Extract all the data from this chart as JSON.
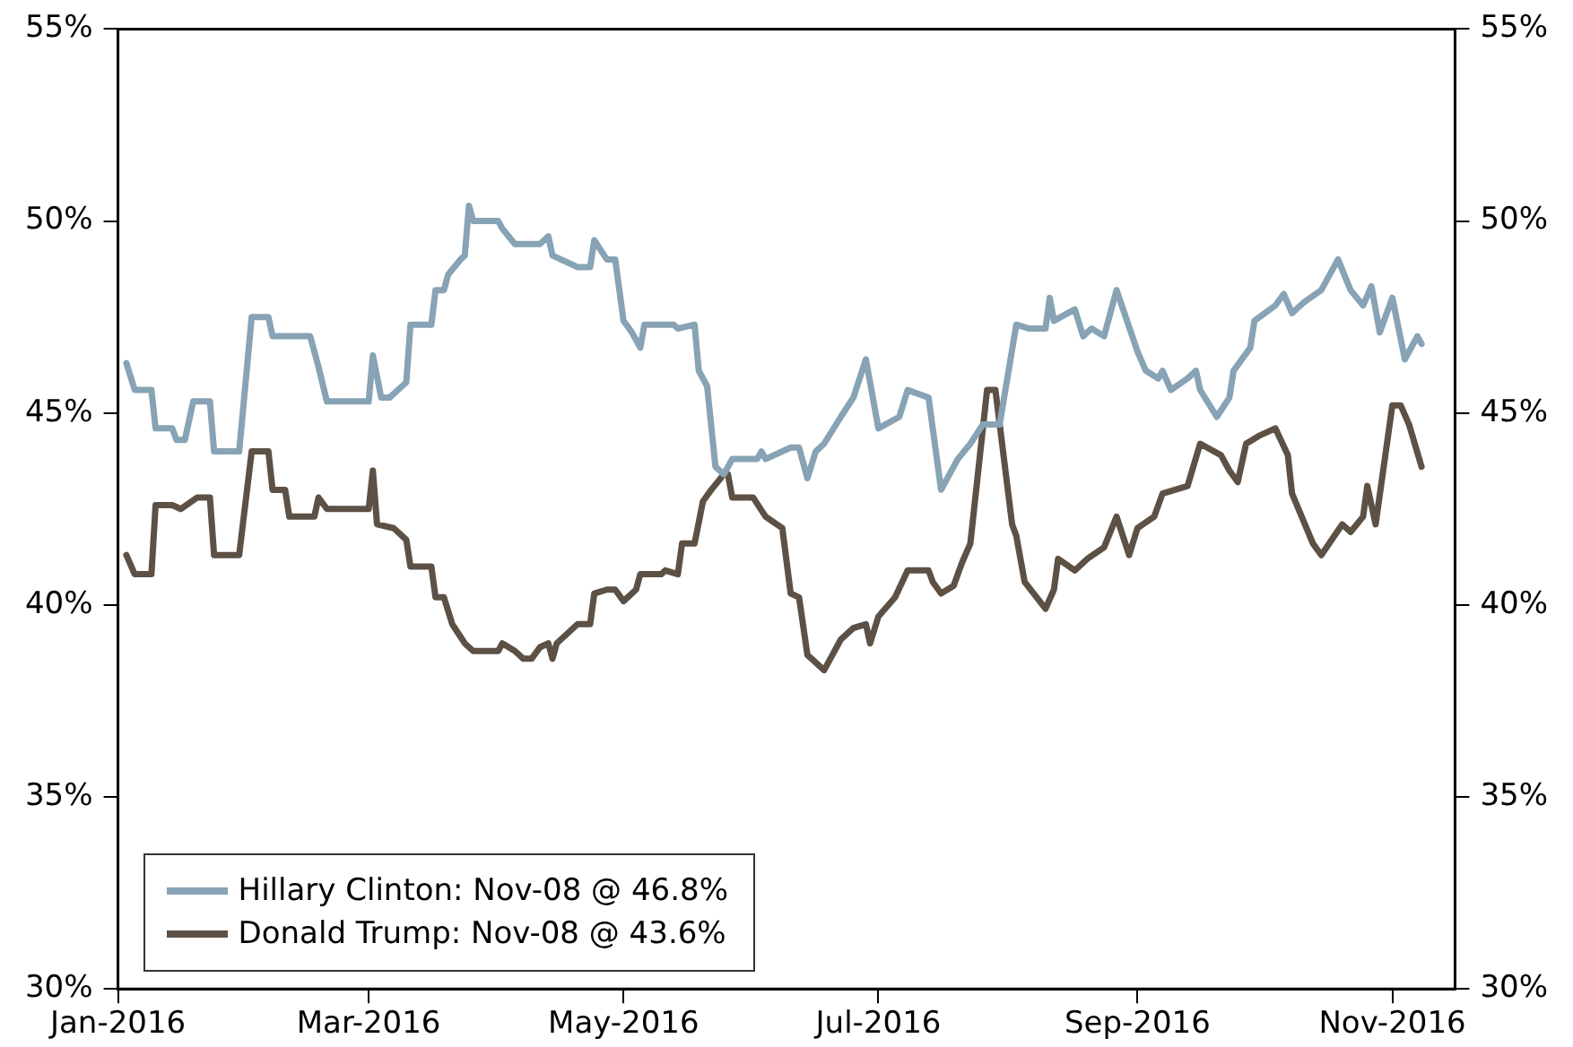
{
  "chart_data": {
    "type": "line",
    "legend": "bottom left",
    "marker": "none",
    "line_style": "solid",
    "grid": false,
    "xlim": [
      "2016-01-01",
      "2016-11-16"
    ],
    "xticks": [
      {
        "value": "2016-01-01",
        "label": "Jan-2016"
      },
      {
        "value": "2016-03-01",
        "label": "Mar-2016"
      },
      {
        "value": "2016-05-01",
        "label": "May-2016"
      },
      {
        "value": "2016-07-01",
        "label": "Jul-2016"
      },
      {
        "value": "2016-09-01",
        "label": "Sep-2016"
      },
      {
        "value": "2016-11-01",
        "label": "Nov-2016"
      }
    ],
    "ylim": [
      30,
      55
    ],
    "yticks": [
      {
        "value": 30,
        "label": "30%"
      },
      {
        "value": 35,
        "label": "35%"
      },
      {
        "value": 40,
        "label": "40%"
      },
      {
        "value": 45,
        "label": "45%"
      },
      {
        "value": 50,
        "label": "50%"
      },
      {
        "value": 55,
        "label": "55%"
      }
    ],
    "y2lim": [
      30,
      55
    ],
    "y2ticks": [
      {
        "value": 30,
        "label": "30%"
      },
      {
        "value": 35,
        "label": "35%"
      },
      {
        "value": 40,
        "label": "40%"
      },
      {
        "value": 45,
        "label": "45%"
      },
      {
        "value": 50,
        "label": "50%"
      },
      {
        "value": 55,
        "label": "55%"
      }
    ],
    "series": [
      {
        "name": "Hillary Clinton: Nov-08 @ 46.8%",
        "color": "#87a3b5",
        "x": [
          "2016-01-03",
          "2016-01-05",
          "2016-01-09",
          "2016-01-10",
          "2016-01-14",
          "2016-01-15",
          "2016-01-17",
          "2016-01-19",
          "2016-01-23",
          "2016-01-24",
          "2016-01-30",
          "2016-02-02",
          "2016-02-06",
          "2016-02-07",
          "2016-02-16",
          "2016-02-18",
          "2016-02-20",
          "2016-03-01",
          "2016-03-02",
          "2016-03-04",
          "2016-03-06",
          "2016-03-10",
          "2016-03-11",
          "2016-03-16",
          "2016-03-17",
          "2016-03-19",
          "2016-03-20",
          "2016-03-23",
          "2016-03-24",
          "2016-03-25",
          "2016-03-26",
          "2016-04-01",
          "2016-04-02",
          "2016-04-05",
          "2016-04-11",
          "2016-04-13",
          "2016-04-14",
          "2016-04-20",
          "2016-04-23",
          "2016-04-24",
          "2016-04-27",
          "2016-04-29",
          "2016-05-01",
          "2016-05-03",
          "2016-05-05",
          "2016-05-06",
          "2016-05-13",
          "2016-05-14",
          "2016-05-18",
          "2016-05-19",
          "2016-05-21",
          "2016-05-23",
          "2016-05-25",
          "2016-05-27",
          "2016-06-02",
          "2016-06-03",
          "2016-06-04",
          "2016-06-10",
          "2016-06-12",
          "2016-06-14",
          "2016-06-16",
          "2016-06-18",
          "2016-06-22",
          "2016-06-25",
          "2016-06-28",
          "2016-07-01",
          "2016-07-06",
          "2016-07-08",
          "2016-07-13",
          "2016-07-16",
          "2016-07-20",
          "2016-07-23",
          "2016-07-26",
          "2016-07-30",
          "2016-08-03",
          "2016-08-06",
          "2016-08-10",
          "2016-08-11",
          "2016-08-12",
          "2016-08-17",
          "2016-08-19",
          "2016-08-21",
          "2016-08-24",
          "2016-08-27",
          "2016-09-01",
          "2016-09-03",
          "2016-09-06",
          "2016-09-07",
          "2016-09-09",
          "2016-09-13",
          "2016-09-15",
          "2016-09-16",
          "2016-09-20",
          "2016-09-23",
          "2016-09-24",
          "2016-09-28",
          "2016-09-29",
          "2016-10-04",
          "2016-10-06",
          "2016-10-08",
          "2016-10-11",
          "2016-10-15",
          "2016-10-19",
          "2016-10-22",
          "2016-10-25",
          "2016-10-27",
          "2016-10-29",
          "2016-11-01",
          "2016-11-04",
          "2016-11-07",
          "2016-11-08"
        ],
        "values": [
          46.3,
          45.6,
          45.6,
          44.6,
          44.6,
          44.3,
          44.3,
          45.3,
          45.3,
          44.0,
          44.0,
          47.5,
          47.5,
          47.0,
          47.0,
          46.2,
          45.3,
          45.3,
          46.5,
          45.4,
          45.4,
          45.8,
          47.3,
          47.3,
          48.2,
          48.2,
          48.6,
          49.0,
          49.1,
          50.4,
          50.0,
          50.0,
          49.8,
          49.4,
          49.4,
          49.6,
          49.1,
          48.8,
          48.8,
          49.5,
          49.0,
          49.0,
          47.4,
          47.1,
          46.7,
          47.3,
          47.3,
          47.2,
          47.3,
          46.1,
          45.7,
          43.6,
          43.4,
          43.8,
          43.8,
          44.0,
          43.8,
          44.1,
          44.1,
          43.3,
          44.0,
          44.2,
          44.9,
          45.4,
          46.4,
          44.6,
          44.9,
          45.6,
          45.4,
          43.0,
          43.8,
          44.2,
          44.7,
          44.7,
          47.3,
          47.2,
          47.2,
          48.0,
          47.4,
          47.7,
          47.0,
          47.2,
          47.0,
          48.2,
          46.6,
          46.1,
          45.9,
          46.1,
          45.6,
          45.9,
          46.1,
          45.6,
          44.9,
          45.4,
          46.1,
          46.7,
          47.4,
          47.8,
          48.1,
          47.6,
          47.9,
          48.2,
          49.0,
          48.2,
          47.8,
          48.3,
          47.1,
          48.0,
          46.4,
          47.0,
          46.8
        ]
      },
      {
        "name": "Donald Trump: Nov-08 @ 43.6%",
        "color": "#5d5045",
        "x": [
          "2016-01-03",
          "2016-01-05",
          "2016-01-09",
          "2016-01-10",
          "2016-01-14",
          "2016-01-16",
          "2016-01-20",
          "2016-01-23",
          "2016-01-24",
          "2016-01-30",
          "2016-02-02",
          "2016-02-06",
          "2016-02-07",
          "2016-02-10",
          "2016-02-11",
          "2016-02-17",
          "2016-02-18",
          "2016-02-20",
          "2016-03-01",
          "2016-03-02",
          "2016-03-03",
          "2016-03-07",
          "2016-03-10",
          "2016-03-11",
          "2016-03-16",
          "2016-03-17",
          "2016-03-19",
          "2016-03-21",
          "2016-03-24",
          "2016-03-26",
          "2016-04-01",
          "2016-04-02",
          "2016-04-05",
          "2016-04-07",
          "2016-04-09",
          "2016-04-11",
          "2016-04-13",
          "2016-04-14",
          "2016-04-15",
          "2016-04-20",
          "2016-04-23",
          "2016-04-24",
          "2016-04-27",
          "2016-04-29",
          "2016-05-01",
          "2016-05-04",
          "2016-05-05",
          "2016-05-10",
          "2016-05-11",
          "2016-05-14",
          "2016-05-15",
          "2016-05-18",
          "2016-05-20",
          "2016-05-22",
          "2016-05-25",
          "2016-05-26",
          "2016-05-27",
          "2016-06-01",
          "2016-06-04",
          "2016-06-08",
          "2016-06-10",
          "2016-06-12",
          "2016-06-14",
          "2016-06-18",
          "2016-06-22",
          "2016-06-25",
          "2016-06-28",
          "2016-06-29",
          "2016-07-01",
          "2016-07-05",
          "2016-07-08",
          "2016-07-13",
          "2016-07-14",
          "2016-07-16",
          "2016-07-19",
          "2016-07-21",
          "2016-07-23",
          "2016-07-27",
          "2016-07-29",
          "2016-08-02",
          "2016-08-03",
          "2016-08-05",
          "2016-08-10",
          "2016-08-12",
          "2016-08-13",
          "2016-08-17",
          "2016-08-20",
          "2016-08-24",
          "2016-08-27",
          "2016-08-30",
          "2016-09-01",
          "2016-09-05",
          "2016-09-07",
          "2016-09-13",
          "2016-09-16",
          "2016-09-21",
          "2016-09-23",
          "2016-09-25",
          "2016-09-27",
          "2016-09-30",
          "2016-10-04",
          "2016-10-07",
          "2016-10-08",
          "2016-10-13",
          "2016-10-15",
          "2016-10-20",
          "2016-10-22",
          "2016-10-25",
          "2016-10-26",
          "2016-10-28",
          "2016-11-01",
          "2016-11-03",
          "2016-11-05",
          "2016-11-08"
        ],
        "values": [
          41.3,
          40.8,
          40.8,
          42.6,
          42.6,
          42.5,
          42.8,
          42.8,
          41.3,
          41.3,
          44.0,
          44.0,
          43.0,
          43.0,
          42.3,
          42.3,
          42.8,
          42.5,
          42.5,
          43.5,
          42.1,
          42.0,
          41.7,
          41.0,
          41.0,
          40.2,
          40.2,
          39.5,
          39.0,
          38.8,
          38.8,
          39.0,
          38.8,
          38.6,
          38.6,
          38.9,
          39.0,
          38.6,
          39.0,
          39.5,
          39.5,
          40.3,
          40.4,
          40.4,
          40.1,
          40.4,
          40.8,
          40.8,
          40.9,
          40.8,
          41.6,
          41.6,
          42.7,
          43.0,
          43.4,
          43.4,
          42.8,
          42.8,
          42.3,
          42.0,
          40.3,
          40.2,
          38.7,
          38.3,
          39.1,
          39.4,
          39.5,
          39.0,
          39.7,
          40.2,
          40.9,
          40.9,
          40.6,
          40.3,
          40.5,
          41.1,
          41.6,
          45.6,
          45.6,
          42.1,
          41.8,
          40.6,
          39.9,
          40.4,
          41.2,
          40.9,
          41.2,
          41.5,
          42.3,
          41.3,
          42.0,
          42.3,
          42.9,
          43.1,
          44.2,
          43.9,
          43.5,
          43.2,
          44.2,
          44.4,
          44.6,
          43.9,
          42.9,
          41.6,
          41.3,
          42.1,
          41.9,
          42.3,
          43.1,
          42.1,
          45.2,
          45.2,
          44.7,
          43.6
        ]
      }
    ]
  }
}
